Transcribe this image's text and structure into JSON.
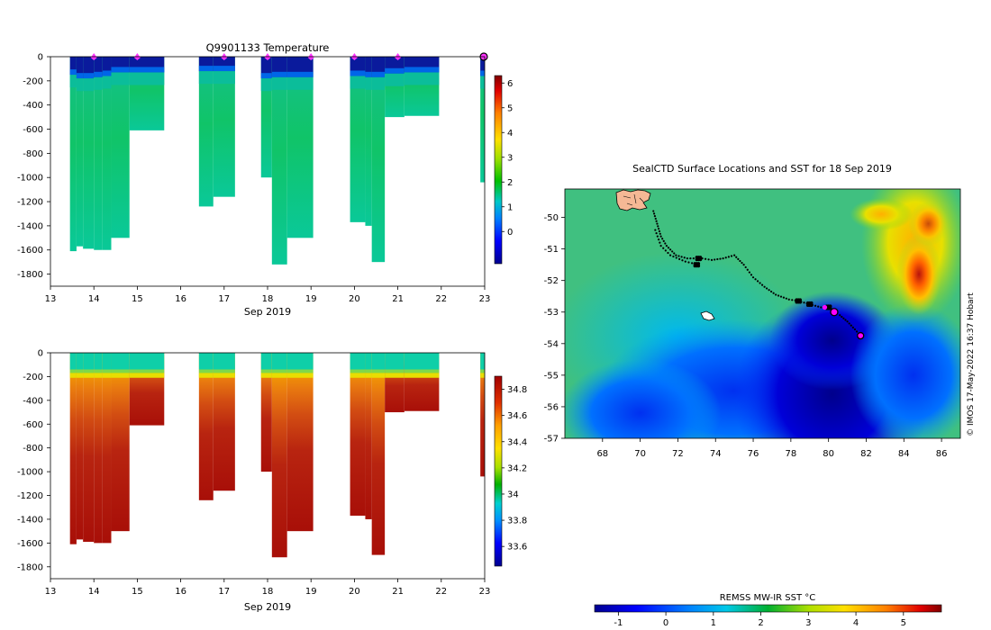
{
  "temperature_title": "Q9901133  Temperature",
  "month_label": "Sep 2019",
  "map_title": "SealCTD Surface Locations and SST for 18 Sep 2019",
  "credit": "© IMOS 17-May-2022 16:37 Hobart",
  "sst_colorbar_label": "REMSS MW-IR SST °C",
  "colors": {
    "profile_marker": "#ff33ff",
    "map_location": "#ff00ff",
    "track": "#000000",
    "land": "#f5b895"
  },
  "chart_data": [
    {
      "type": "heatmap",
      "name": "temperature-section",
      "title": "Q9901133  Temperature",
      "xlabel": "Sep 2019",
      "ylabel": "",
      "xlim": [
        13,
        23
      ],
      "ylim": [
        -1900,
        0
      ],
      "xticks": [
        "13",
        "14",
        "15",
        "16",
        "17",
        "18",
        "19",
        "20",
        "21",
        "22",
        "23"
      ],
      "yticks": [
        "0",
        "-200",
        "-400",
        "-600",
        "-800",
        "-1000",
        "-1200",
        "-1400",
        "-1600",
        "-1800"
      ],
      "surface_markers_day": [
        14,
        15,
        17,
        18,
        19,
        20,
        21
      ],
      "colorbar": {
        "ticks": [
          "0",
          "1",
          "2",
          "3",
          "4",
          "5",
          "6"
        ],
        "range": [
          -1.3,
          6.3
        ]
      },
      "profiles": [
        {
          "x0": 13.45,
          "x1": 13.6,
          "depth": 1610,
          "cold": 150
        },
        {
          "x0": 13.6,
          "x1": 13.75,
          "depth": 1570,
          "cold": 180
        },
        {
          "x0": 13.75,
          "x1": 14.0,
          "depth": 1590,
          "cold": 180
        },
        {
          "x0": 14.0,
          "x1": 14.2,
          "depth": 1600,
          "cold": 170
        },
        {
          "x0": 14.2,
          "x1": 14.4,
          "depth": 1600,
          "cold": 160
        },
        {
          "x0": 14.4,
          "x1": 14.82,
          "depth": 1500,
          "cold": 130
        },
        {
          "x0": 14.82,
          "x1": 15.62,
          "depth": 610,
          "cold": 130
        },
        {
          "x0": 16.42,
          "x1": 16.75,
          "depth": 1240,
          "cold": 120
        },
        {
          "x0": 16.75,
          "x1": 17.25,
          "depth": 1160,
          "cold": 120
        },
        {
          "x0": 17.85,
          "x1": 18.1,
          "depth": 1000,
          "cold": 180
        },
        {
          "x0": 18.1,
          "x1": 18.45,
          "depth": 1720,
          "cold": 170
        },
        {
          "x0": 18.45,
          "x1": 19.05,
          "depth": 1500,
          "cold": 170
        },
        {
          "x0": 19.9,
          "x1": 20.25,
          "depth": 1370,
          "cold": 160
        },
        {
          "x0": 20.25,
          "x1": 20.4,
          "depth": 1400,
          "cold": 170
        },
        {
          "x0": 20.4,
          "x1": 20.7,
          "depth": 1700,
          "cold": 170
        },
        {
          "x0": 20.7,
          "x1": 21.15,
          "depth": 500,
          "cold": 140
        },
        {
          "x0": 21.15,
          "x1": 21.95,
          "depth": 490,
          "cold": 130
        },
        {
          "x0": 22.9,
          "x1": 23.05,
          "depth": 1040,
          "cold": 160
        }
      ]
    },
    {
      "type": "heatmap",
      "name": "salinity-section",
      "title": "",
      "xlabel": "Sep 2019",
      "ylabel": "",
      "xlim": [
        13,
        23
      ],
      "ylim": [
        -1900,
        0
      ],
      "xticks": [
        "13",
        "14",
        "15",
        "16",
        "17",
        "18",
        "19",
        "20",
        "21",
        "22",
        "23"
      ],
      "yticks": [
        "0",
        "-200",
        "-400",
        "-600",
        "-800",
        "-1000",
        "-1200",
        "-1400",
        "-1600",
        "-1800"
      ],
      "colorbar": {
        "ticks": [
          "33.6",
          "33.8",
          "34",
          "34.2",
          "34.4",
          "34.6",
          "34.8"
        ],
        "range": [
          33.45,
          34.9
        ]
      }
    },
    {
      "type": "heatmap",
      "name": "sst-map",
      "title": "SealCTD Surface Locations and SST for 18 Sep 2019",
      "xlabel": "",
      "ylabel": "",
      "xlim": [
        66,
        87
      ],
      "ylim": [
        -57,
        -49.1
      ],
      "xticks": [
        "68",
        "70",
        "72",
        "74",
        "76",
        "78",
        "80",
        "82",
        "84",
        "86"
      ],
      "yticks": [
        "-50",
        "-51",
        "-52",
        "-53",
        "-54",
        "-55",
        "-56",
        "-57"
      ],
      "colorbar": {
        "label": "REMSS MW-IR SST °C",
        "ticks": [
          "-1",
          "0",
          "1",
          "2",
          "3",
          "4",
          "5"
        ],
        "range": [
          -1.5,
          5.8
        ]
      },
      "track": [
        [
          70.7,
          -49.8
        ],
        [
          70.9,
          -50.2
        ],
        [
          71.1,
          -50.6
        ],
        [
          71.4,
          -50.9
        ],
        [
          71.9,
          -51.2
        ],
        [
          72.5,
          -51.3
        ],
        [
          73.0,
          -51.3
        ],
        [
          73.3,
          -51.3
        ],
        [
          73.8,
          -51.35
        ],
        [
          74.4,
          -51.3
        ],
        [
          75.0,
          -51.2
        ],
        [
          75.5,
          -51.5
        ],
        [
          76.0,
          -51.9
        ],
        [
          76.6,
          -52.2
        ],
        [
          77.2,
          -52.45
        ],
        [
          77.9,
          -52.6
        ],
        [
          78.4,
          -52.65
        ],
        [
          79.0,
          -52.75
        ],
        [
          79.6,
          -52.85
        ],
        [
          80.1,
          -52.9
        ],
        [
          80.4,
          -53.0
        ]
      ],
      "track2": [
        [
          70.8,
          -50.4
        ],
        [
          71.1,
          -50.9
        ],
        [
          71.6,
          -51.2
        ],
        [
          72.4,
          -51.4
        ],
        [
          73.1,
          -51.5
        ]
      ],
      "sst_hotspots": [
        {
          "lon": 84.8,
          "lat": -51.8,
          "value": 5.5
        },
        {
          "lon": 85.4,
          "lat": -50.4,
          "value": 3.9
        },
        {
          "lon": 80.4,
          "lat": -56.3,
          "value": -1.4
        },
        {
          "lon": 80.2,
          "lat": -54.2,
          "value": -1.2
        },
        {
          "lon": 83.2,
          "lat": -50.0,
          "value": 3.2
        },
        {
          "lon": 73.0,
          "lat": -54.5,
          "value": 0.6
        }
      ],
      "current_location": {
        "lon": 80.3,
        "lat": -53.0
      },
      "extra_location": {
        "lon": 81.7,
        "lat": -53.75
      },
      "track_points": [
        {
          "lon": 79.8,
          "lat": -52.85
        }
      ]
    }
  ]
}
